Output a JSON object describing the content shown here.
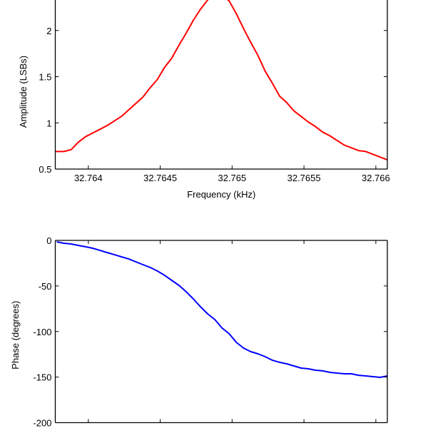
{
  "chart_data": [
    {
      "type": "line",
      "title": "",
      "xlabel": "Frequency (kHz)",
      "ylabel": "Amplitude (LSBs)",
      "xlim": [
        32.76377,
        32.76608
      ],
      "ylim": [
        0.5,
        2.5
      ],
      "xticks": [
        32.764,
        32.7645,
        32.765,
        32.7655,
        32.766
      ],
      "xtick_labels": [
        "32.764",
        "32.7645",
        "32.765",
        "32.7655",
        "32.766"
      ],
      "yticks": [
        0.5,
        1,
        1.5,
        2
      ],
      "ytick_labels": [
        "0.5",
        "1",
        "1.5",
        "2"
      ],
      "grid": false,
      "series": [
        {
          "name": "Amplitude",
          "color": "#ff0000",
          "x": [
            32.76377,
            32.76383,
            32.76388,
            32.76393,
            32.76398,
            32.76403,
            32.76408,
            32.76413,
            32.76418,
            32.76423,
            32.76428,
            32.76433,
            32.76438,
            32.76443,
            32.76448,
            32.76453,
            32.76458,
            32.76463,
            32.76468,
            32.76473,
            32.76478,
            32.76483,
            32.76488,
            32.76493,
            32.76498,
            32.76503,
            32.76508,
            32.76513,
            32.76518,
            32.76523,
            32.76528,
            32.76533,
            32.76538,
            32.76543,
            32.76548,
            32.76553,
            32.76558,
            32.76563,
            32.76568,
            32.76573,
            32.76578,
            32.76583,
            32.76588,
            32.76593,
            32.76598,
            32.76603,
            32.76608
          ],
          "y": [
            0.69,
            0.69,
            0.71,
            0.79,
            0.85,
            0.89,
            0.93,
            0.97,
            1.02,
            1.07,
            1.14,
            1.21,
            1.28,
            1.38,
            1.47,
            1.6,
            1.7,
            1.84,
            1.97,
            2.11,
            2.23,
            2.33,
            2.4,
            2.38,
            2.32,
            2.18,
            2.02,
            1.87,
            1.73,
            1.56,
            1.43,
            1.29,
            1.22,
            1.13,
            1.07,
            1.01,
            0.96,
            0.9,
            0.86,
            0.81,
            0.76,
            0.73,
            0.7,
            0.69,
            0.66,
            0.63,
            0.6
          ]
        }
      ]
    },
    {
      "type": "line",
      "title": "",
      "xlabel": "",
      "ylabel": "Phase (degrees)",
      "xlim": [
        32.76377,
        32.76608
      ],
      "ylim": [
        -200,
        0
      ],
      "xticks": [
        32.764,
        32.7645,
        32.765,
        32.7655,
        32.766
      ],
      "yticks": [
        0,
        -50,
        -100,
        -150,
        -200
      ],
      "ytick_labels": [
        "0",
        "-50",
        "-100",
        "-150",
        "-200"
      ],
      "grid": false,
      "series": [
        {
          "name": "Phase",
          "color": "#0000ff",
          "x": [
            32.76378,
            32.76383,
            32.76388,
            32.76393,
            32.76398,
            32.76403,
            32.76408,
            32.76413,
            32.76418,
            32.76423,
            32.76428,
            32.76433,
            32.76438,
            32.76443,
            32.76448,
            32.76453,
            32.76458,
            32.76463,
            32.76468,
            32.76473,
            32.76478,
            32.76483,
            32.76488,
            32.76493,
            32.76498,
            32.76503,
            32.76508,
            32.76513,
            32.76518,
            32.76523,
            32.76528,
            32.76533,
            32.76538,
            32.76543,
            32.76548,
            32.76553,
            32.76558,
            32.76563,
            32.76568,
            32.76573,
            32.76578,
            32.76583,
            32.76588,
            32.76593,
            32.76598,
            32.76603,
            32.76608
          ],
          "y": [
            -1.6,
            -3.1,
            -3.9,
            -5.5,
            -7.0,
            -8.6,
            -10.9,
            -13.3,
            -15.6,
            -18.0,
            -20.3,
            -23.5,
            -26.6,
            -29.7,
            -33.6,
            -38.3,
            -43.8,
            -49.3,
            -56.3,
            -64.2,
            -72.8,
            -80.6,
            -86.9,
            -96.2,
            -102.5,
            -111.9,
            -118.2,
            -122.1,
            -124.5,
            -127.6,
            -131.5,
            -133.8,
            -135.4,
            -137.8,
            -140.1,
            -140.9,
            -142.5,
            -143.2,
            -144.8,
            -145.6,
            -146.4,
            -146.4,
            -148.0,
            -148.7,
            -149.5,
            -150.3,
            -148.7
          ]
        }
      ]
    }
  ]
}
